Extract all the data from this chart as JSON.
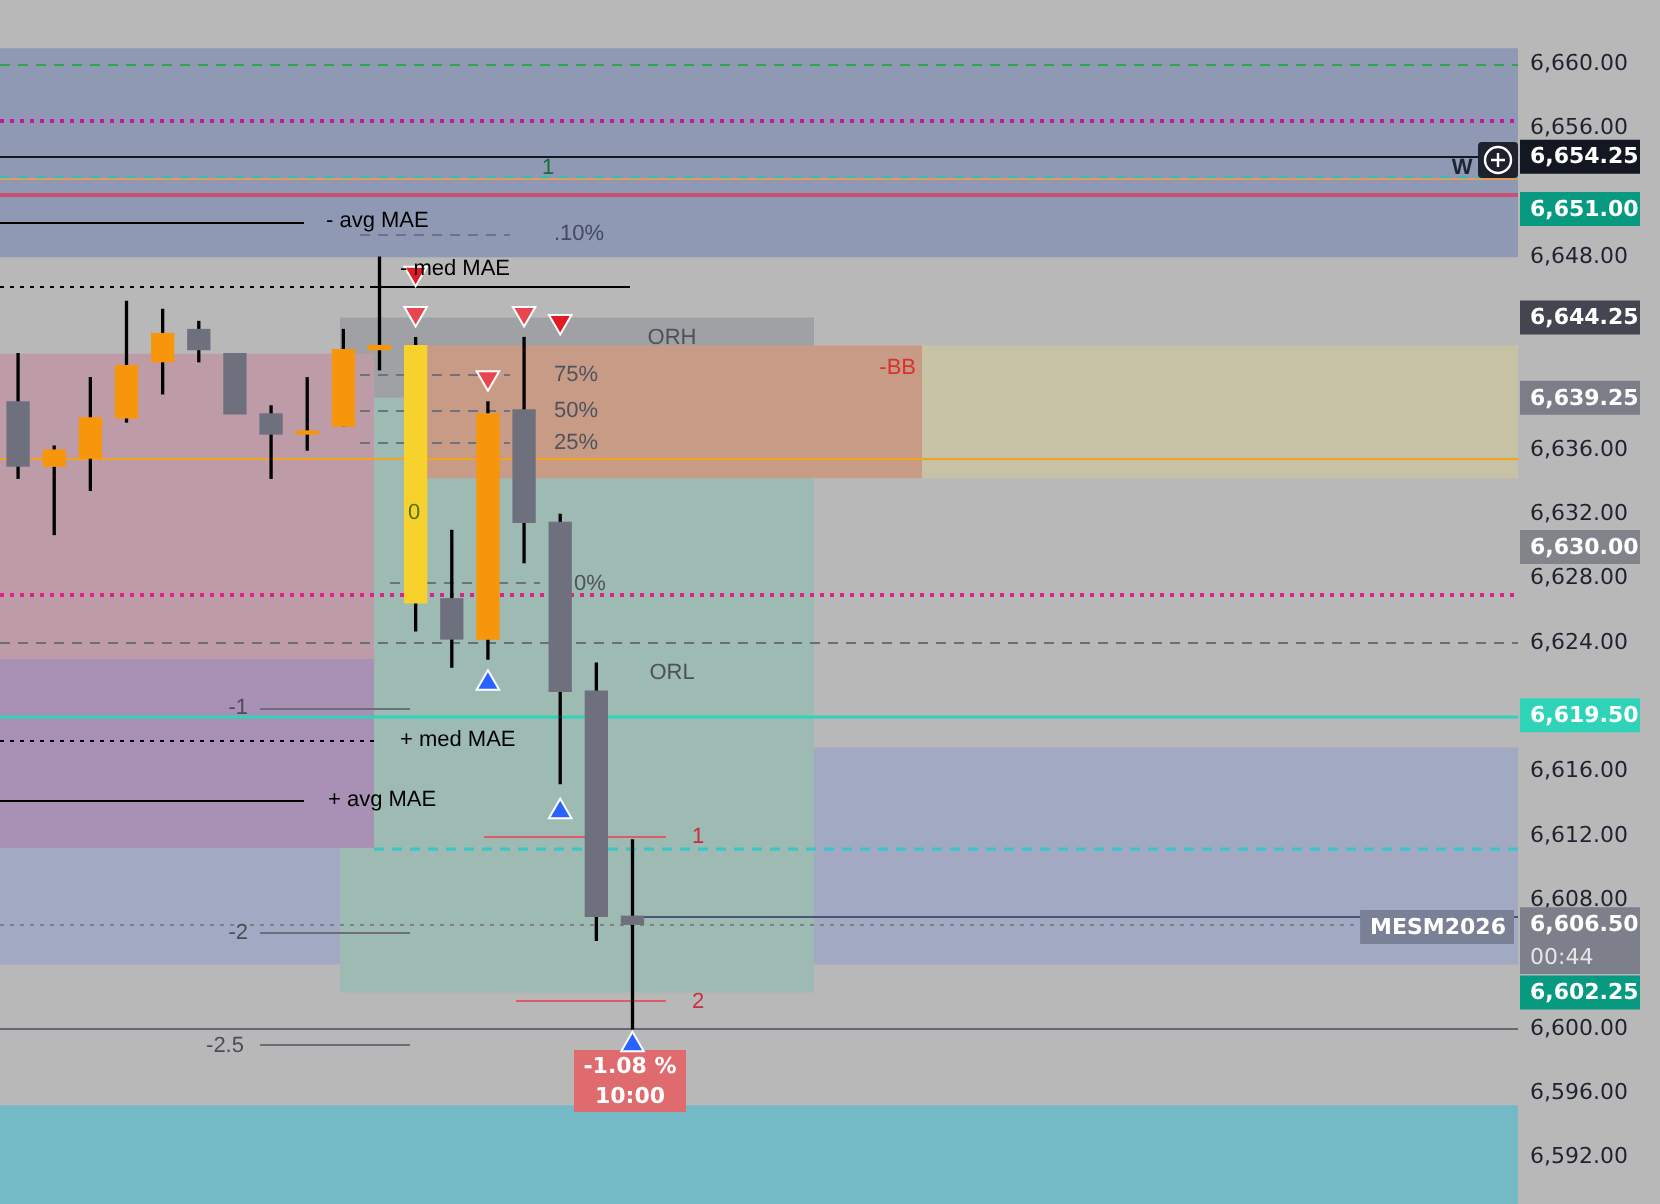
{
  "chart_data": {
    "type": "candlestick",
    "categories": [
      null,
      null,
      null,
      null,
      null,
      null,
      null,
      null,
      null,
      null,
      null,
      null,
      null,
      null,
      null,
      null,
      null,
      null,
      null,
      null,
      null,
      null,
      null,
      null,
      null,
      null,
      null,
      null,
      null,
      null,
      null,
      null,
      null,
      null,
      null,
      null,
      null,
      null,
      null,
      null,
      null,
      null
    ],
    "ohlc": [
      [
        6639.0,
        6642.0,
        6634.25,
        6635.0
      ],
      [
        6635.0,
        6636.25,
        6630.75,
        6636.0
      ],
      [
        6635.5,
        6640.5,
        6633.5,
        6638.0
      ],
      [
        6638.0,
        6645.25,
        6637.75,
        6641.25
      ],
      [
        6641.5,
        6644.75,
        6639.5,
        6643.25
      ],
      [
        6643.5,
        6644.0,
        6641.5,
        6642.25
      ],
      [
        6642.0,
        6642.0,
        6638.25,
        6638.25
      ],
      [
        6638.25,
        6638.75,
        6634.25,
        6637.0
      ],
      [
        6637.0,
        6640.5,
        6636.0,
        6637.0
      ],
      [
        6637.5,
        6643.5,
        6637.5,
        6642.25
      ],
      [
        6642.25,
        6648.0,
        6641.0,
        6642.5
      ],
      [
        6642.5,
        6643.0,
        6624.75,
        6626.5
      ],
      [
        6626.75,
        6631.0,
        6622.5,
        6624.25
      ],
      [
        6624.25,
        6639.0,
        6623.0,
        6638.25
      ],
      [
        6638.5,
        6643.0,
        6629.0,
        6631.5
      ],
      [
        6631.5,
        6632.0,
        6615.25,
        6621.0
      ],
      [
        6621.0,
        6622.75,
        6605.5,
        6607.0
      ],
      [
        6607.0,
        6611.75,
        6600.0,
        6606.5
      ],
      null,
      null,
      null,
      null,
      null,
      null,
      null,
      null,
      null,
      null,
      null,
      null,
      null,
      null,
      null,
      null,
      null,
      null,
      null,
      null,
      null,
      null,
      null,
      null
    ],
    "colors": [
      "#6e717d",
      "#f7960a",
      "#f7960a",
      "#f7960a",
      "#f7960a",
      "#6e717d",
      "#6e717d",
      "#6e717d",
      "#f7960a",
      "#f7960a",
      "#f7960a",
      "#f8d22c",
      "#6e717d",
      "#f7960a",
      "#6e717d",
      "#6e717d",
      "#6e717d",
      "#6e717d",
      null,
      null,
      null,
      null,
      null,
      null,
      null,
      null,
      null,
      null,
      null,
      null,
      null,
      null,
      null,
      null,
      null,
      null,
      null,
      null,
      null,
      null,
      null,
      null
    ],
    "series": [
      {
        "type": "scatter",
        "color": "#e8454f",
        "marker": "triangle",
        "values": [
          null,
          null,
          null,
          null,
          null,
          null,
          null,
          null,
          null,
          null,
          null,
          6644.5,
          null,
          6640.5,
          6644.5,
          null,
          null,
          null,
          null,
          null,
          null,
          null,
          null,
          null,
          null,
          null,
          null,
          null,
          null,
          null,
          null,
          null,
          null,
          null,
          null,
          null,
          null,
          null,
          null,
          null,
          null,
          null
        ]
      },
      {
        "type": "scatter",
        "color": "#2962ff",
        "marker": "triangle",
        "values": [
          null,
          null,
          null,
          null,
          null,
          null,
          null,
          null,
          null,
          null,
          null,
          null,
          null,
          6621.5,
          null,
          6613.5,
          null,
          6599.0,
          null,
          null,
          null,
          null,
          null,
          null,
          null,
          null,
          null,
          null,
          null,
          null,
          null,
          null,
          null,
          null,
          null,
          null,
          null,
          null,
          null,
          null,
          null,
          null
        ]
      },
      {
        "type": "scatter",
        "color": "#e01b24",
        "marker": "triangle",
        "values": [
          null,
          null,
          null,
          null,
          null,
          null,
          null,
          null,
          null,
          null,
          null,
          6647.0,
          null,
          null,
          null,
          6644.0,
          null,
          null,
          null,
          null,
          null,
          null,
          null,
          null,
          null,
          null,
          null,
          null,
          null,
          null,
          null,
          null,
          null,
          null,
          null,
          null,
          null,
          null,
          null,
          null,
          null,
          null
        ]
      }
    ],
    "ylim": [
      6589.1,
      6664
    ],
    "yticks": [
      {
        "value": 6592,
        "label": "6,592.00"
      },
      {
        "value": 6596,
        "label": "6,596.00"
      },
      {
        "value": 6600,
        "label": "6,600.00"
      },
      {
        "value": 6608,
        "label": "6,608.00"
      },
      {
        "value": 6612,
        "label": "6,612.00"
      },
      {
        "value": 6616,
        "label": "6,616.00"
      },
      {
        "value": 6624,
        "label": "6,624.00"
      },
      {
        "value": 6628,
        "label": "6,628.00"
      },
      {
        "value": 6632,
        "label": "6,632.00"
      },
      {
        "value": 6636,
        "label": "6,636.00"
      },
      {
        "value": 6648,
        "label": "6,648.00"
      },
      {
        "value": 6656,
        "label": "6,656.00"
      },
      {
        "value": 6660,
        "label": "6,660.00"
      }
    ],
    "bands": [
      {
        "axis": "y",
        "from": 6661,
        "to": 6648,
        "color": "#8f99b4"
      },
      {
        "axis": "y",
        "from": 6642.5,
        "to": 6634.25,
        "color": "#c7c1a5"
      },
      {
        "axis": "y",
        "from": 6617.5,
        "to": 6604,
        "color": "#a2a9c3"
      },
      {
        "axis": "y",
        "from": 6595.25,
        "to": 6589.1,
        "color": "#73b9c6"
      },
      {
        "axis": "y",
        "from": 6639.25,
        "to": 6602.25,
        "color": "#9dbab3"
      },
      {
        "axis": "y",
        "from": 6644.25,
        "to": 6639.25,
        "label": "ORH",
        "color": "#a0a1a4"
      },
      {
        "axis": "y",
        "from": 6642.5,
        "to": 6634.25,
        "label": "-BB",
        "color": "#c79b86"
      },
      {
        "axis": "y",
        "from": 6642.0,
        "to": 6623.0,
        "color": "#bd9ca8"
      },
      {
        "axis": "y",
        "from": 6623.0,
        "to": 6611.25,
        "color": "#a891b4"
      }
    ],
    "ref_lines": [
      {
        "axis": "y",
        "value": 6660,
        "color": "#2aa84a",
        "line_style": "dashed"
      },
      {
        "axis": "y",
        "value": 6656.5,
        "color": "#c8199e",
        "line_style": "dotted"
      },
      {
        "axis": "y",
        "value": 6654.25,
        "label": "6,654.25",
        "color": "#131722",
        "line_style": "solid"
      },
      {
        "axis": "y",
        "value": 6653.1,
        "color": "#2fbfc0",
        "line_style": "dashed"
      },
      {
        "axis": "y",
        "value": 6652.9,
        "color": "#e49a5a",
        "line_style": "solid"
      },
      {
        "axis": "y",
        "value": 6651.9,
        "color": "#c9506e",
        "line_style": "solid"
      },
      {
        "axis": "y",
        "value": 6635.5,
        "color": "#f2a51c",
        "line_style": "solid"
      },
      {
        "axis": "y",
        "value": 6627.0,
        "color": "#e0218a",
        "line_style": "dotted"
      },
      {
        "axis": "y",
        "value": 6624.0,
        "color": "#6b6e79",
        "line_style": "dashed"
      },
      {
        "axis": "y",
        "value": 6619.5,
        "label": "6,619.50",
        "color": "#2fd3b8",
        "line_style": "solid"
      },
      {
        "axis": "y",
        "value": 6611.25,
        "color": "#36c7c9",
        "line_style": "dashed"
      },
      {
        "axis": "y",
        "value": 6607.0,
        "color": "#4a5676",
        "line_style": "solid"
      },
      {
        "axis": "y",
        "value": 6606.5,
        "label": "6,606.50",
        "color": "#7d808a",
        "line_style": "dotted"
      },
      {
        "axis": "y",
        "value": 6600.0,
        "color": "#656873",
        "line_style": "solid"
      },
      {
        "axis": "y",
        "value": 6650.25,
        "label": "- avg MAE",
        "color": "#000000",
        "line_style": "solid"
      },
      {
        "axis": "y",
        "value": 6646.25,
        "color": "#000000",
        "line_style": "dotted"
      },
      {
        "axis": "y",
        "value": 6646.25,
        "label": "- med MAE",
        "color": "#000000",
        "line_style": "solid"
      },
      {
        "axis": "y",
        "value": 6618.0,
        "label": "+ med MAE",
        "color": "#000000",
        "line_style": "dotted"
      },
      {
        "axis": "y",
        "value": 6614.25,
        "label": "+ avg MAE",
        "color": "#000000",
        "line_style": "solid"
      },
      {
        "axis": "y",
        "value": 6649.5,
        "color": "#6a7290",
        "line_style": "dashed"
      },
      {
        "axis": "y",
        "value": 6640.75,
        "color": "#6f727b",
        "line_style": "dashed"
      },
      {
        "axis": "y",
        "value": 6638.5,
        "color": "#6f727b",
        "line_style": "dashed"
      },
      {
        "axis": "y",
        "value": 6636.5,
        "color": "#6f727b",
        "line_style": "dashed"
      },
      {
        "axis": "y",
        "value": 6627.75,
        "color": "#6f727b",
        "line_style": "dashed"
      },
      {
        "axis": "y",
        "value": 6620.0,
        "color": "#6c6f79",
        "line_style": "solid"
      },
      {
        "axis": "y",
        "value": 6606.0,
        "color": "#6c6f79",
        "line_style": "solid"
      },
      {
        "axis": "y",
        "value": 6599.0,
        "color": "#6c6f79",
        "line_style": "solid"
      },
      {
        "axis": "y",
        "value": 6612.0,
        "color": "#de5b69",
        "line_style": "solid"
      },
      {
        "axis": "y",
        "value": 6601.75,
        "color": "#de5b69",
        "line_style": "solid"
      }
    ],
    "annotations": [
      "ORL",
      "0",
      "W",
      "-1.08 %",
      "10:00",
      "MESM2026",
      "00:44",
      "6,651.00",
      "6,630.00",
      "6,644.25",
      "6,639.25",
      "6,602.25",
      "1",
      ".10%",
      "75%",
      "50%",
      "25%",
      "0%",
      "-1",
      "-2",
      "-2.5",
      "1",
      "2"
    ]
  }
}
